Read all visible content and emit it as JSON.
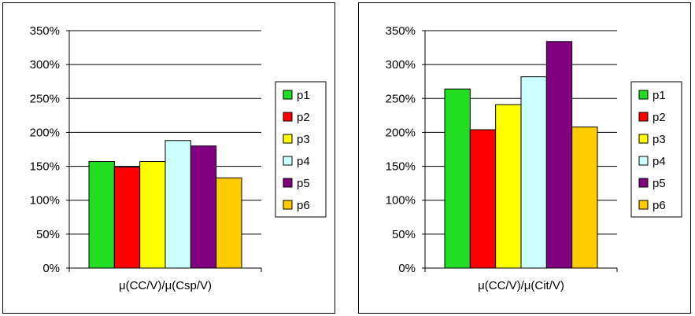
{
  "chart_data": [
    {
      "type": "bar",
      "categories": [
        "μ(CC/V)/μ(Csp/V)"
      ],
      "series": [
        {
          "name": "p1",
          "values": [
            157
          ]
        },
        {
          "name": "p2",
          "values": [
            149
          ]
        },
        {
          "name": "p3",
          "values": [
            157
          ]
        },
        {
          "name": "p4",
          "values": [
            188
          ]
        },
        {
          "name": "p5",
          "values": [
            180
          ]
        },
        {
          "name": "p6",
          "values": [
            133
          ]
        }
      ],
      "colors": [
        "#22dd22",
        "#ff0000",
        "#ffff00",
        "#ccffff",
        "#800080",
        "#ffcc00"
      ],
      "xlabel": "μ(CC/V)/μ(Csp/V)",
      "ylabel": "",
      "ylim": [
        0,
        350
      ],
      "yticks": [
        "0%",
        "50%",
        "100%",
        "150%",
        "200%",
        "250%",
        "300%",
        "350%"
      ],
      "grid": true,
      "legend": "right"
    },
    {
      "type": "bar",
      "categories": [
        "μ(CC/V)/μ(Cit/V)"
      ],
      "series": [
        {
          "name": "p1",
          "values": [
            264
          ]
        },
        {
          "name": "p2",
          "values": [
            204
          ]
        },
        {
          "name": "p3",
          "values": [
            241
          ]
        },
        {
          "name": "p4",
          "values": [
            282
          ]
        },
        {
          "name": "p5",
          "values": [
            334
          ]
        },
        {
          "name": "p6",
          "values": [
            208
          ]
        }
      ],
      "colors": [
        "#22dd22",
        "#ff0000",
        "#ffff00",
        "#ccffff",
        "#800080",
        "#ffcc00"
      ],
      "xlabel": "μ(CC/V)/μ(Cit/V)",
      "ylabel": "",
      "ylim": [
        0,
        350
      ],
      "yticks": [
        "0%",
        "50%",
        "100%",
        "150%",
        "200%",
        "250%",
        "300%",
        "350%"
      ],
      "grid": true,
      "legend": "right"
    }
  ]
}
